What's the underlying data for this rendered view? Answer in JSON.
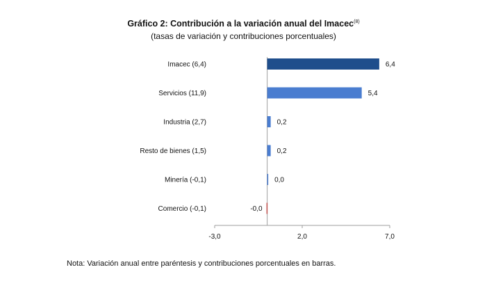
{
  "title": "Gráfico 2: Contribución a la variación anual del Imacec",
  "title_sup": "(8)",
  "subtitle": "(tasas de variación y contribuciones porcentuales)",
  "note": "Nota: Variación anual entre paréntesis y contribuciones porcentuales en barras.",
  "colors": {
    "highlight": "#1f4e8c",
    "bar": "#4a7dd0",
    "negative": "#c0504d",
    "axis": "#9e9e9e"
  },
  "chart_data": {
    "type": "bar",
    "orientation": "horizontal",
    "categories": [
      "Imacec (6,4)",
      "Servicios (11,9)",
      "Industria (2,7)",
      "Resto de bienes (1,5)",
      "Minería (-0,1)",
      "Comercio (-0,1)"
    ],
    "values": [
      6.4,
      5.4,
      0.2,
      0.2,
      0.04,
      -0.04
    ],
    "value_labels": [
      "6,4",
      "5,4",
      "0,2",
      "0,2",
      "0,0",
      "-0,0"
    ],
    "xlim": [
      -3,
      7
    ],
    "xticks": [
      -3,
      2,
      7
    ],
    "xtick_labels": [
      "-3,0",
      "2,0",
      "7,0"
    ],
    "grid": false,
    "legend": "none"
  }
}
